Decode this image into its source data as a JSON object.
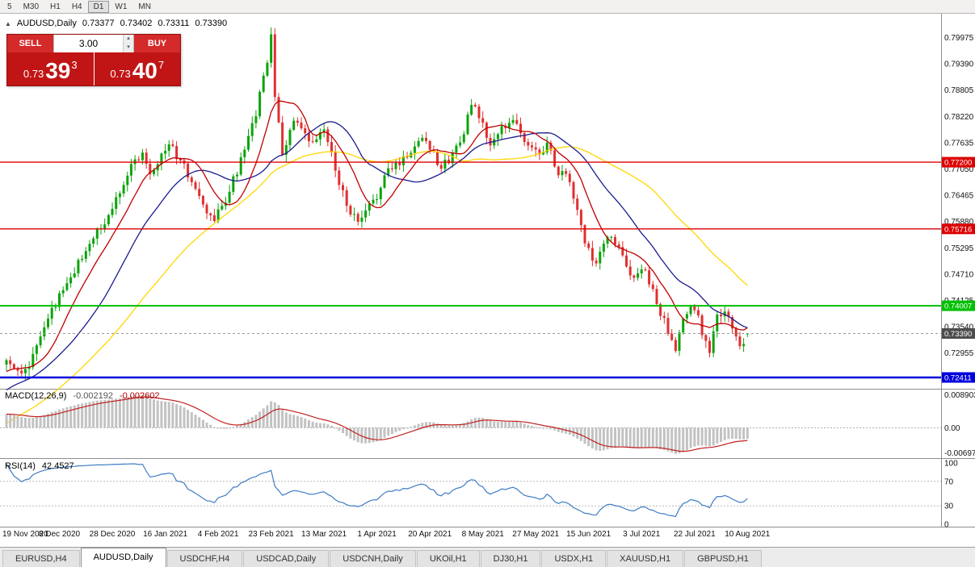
{
  "toolbar": {
    "timeframes": [
      "5",
      "M30",
      "H1",
      "H4",
      "D1",
      "W1",
      "MN"
    ],
    "active": "D1"
  },
  "chart_header": {
    "collapse_icon": "▲",
    "symbol": "AUDUSD,Daily",
    "open": "0.73377",
    "high": "0.73402",
    "low": "0.73311",
    "close": "0.73390"
  },
  "trade_panel": {
    "sell_label": "SELL",
    "buy_label": "BUY",
    "volume": "3.00",
    "volume_up_icon": "▴",
    "volume_down_icon": "▾",
    "sell_price": {
      "base": "0.73",
      "big": "39",
      "sup": "3"
    },
    "buy_price": {
      "base": "0.73",
      "big": "40",
      "sup": "7"
    }
  },
  "macd_panel": {
    "label": "MACD(12,26,9)",
    "value_main": "-0.002192",
    "value_signal": "-0.002602",
    "axis_top": "0.008903",
    "axis_zero": "0.00",
    "axis_bottom": "-0.006970",
    "histogram_color": "#c2c2c2",
    "signal_color": "#c32020"
  },
  "rsi_panel": {
    "label": "RSI(14)",
    "value": "42.4527",
    "axis": [
      "100",
      "70",
      "30",
      "0"
    ],
    "levels": [
      70,
      30
    ],
    "line_color": "#3f7cc4"
  },
  "price_axis": {
    "labels": [
      "0.79975",
      "0.79390",
      "0.78805",
      "0.78220",
      "0.77635",
      "0.77050",
      "0.76465",
      "0.75880",
      "0.75295",
      "0.74710",
      "0.74125",
      "0.73540",
      "0.72955",
      "0.72370"
    ]
  },
  "levels": [
    {
      "value": 0.772,
      "label": "0.77200",
      "color": "#dd0000",
      "width": 1.4
    },
    {
      "value": 0.75716,
      "label": "0.75716",
      "color": "#dd0000",
      "width": 1.4
    },
    {
      "value": 0.74007,
      "label": "0.74007",
      "color": "#00c000",
      "width": 2
    },
    {
      "value": 0.72411,
      "label": "0.72411",
      "color": "#0000dd",
      "width": 2.6
    }
  ],
  "current_price": {
    "value": 0.7339,
    "label": "0.73390",
    "color": "#4d4d4d"
  },
  "bottom_tabs": {
    "items": [
      {
        "label": "EURUSD,H4",
        "active": false
      },
      {
        "label": "AUDUSD,Daily",
        "active": true
      },
      {
        "label": "USDCHF,H4",
        "active": false
      },
      {
        "label": "USDCAD,Daily",
        "active": false
      },
      {
        "label": "USDCNH,Daily",
        "active": false
      },
      {
        "label": "UKOil,H1",
        "active": false
      },
      {
        "label": "DJ30,H1",
        "active": false
      },
      {
        "label": "USDX,H1",
        "active": false
      },
      {
        "label": "XAUUSD,H1",
        "active": false
      },
      {
        "label": "GBPUSD,H1",
        "active": false
      }
    ]
  },
  "chart_data": {
    "type": "candlestick",
    "symbol": "AUDUSD",
    "timeframe": "Daily",
    "current_ohlc": {
      "open": 0.73377,
      "high": 0.73402,
      "low": 0.73311,
      "close": 0.7339
    },
    "ylim": [
      0.7225,
      0.8045
    ],
    "candle_count": 197,
    "candles_per_label": 14,
    "x_labels": [
      "19 Nov 2020",
      "8 Dec 2020",
      "28 Dec 2020",
      "16 Jan 2021",
      "4 Feb 2021",
      "23 Feb 2021",
      "13 Mar 2021",
      "1 Apr 2021",
      "20 Apr 2021",
      "8 May 2021",
      "27 May 2021",
      "15 Jun 2021",
      "3 Jul 2021",
      "22 Jul 2021",
      "10 Aug 2021"
    ],
    "up_color": "#0ca30c",
    "down_color": "#e03030",
    "price_waypoints": [
      [
        0,
        0.7282
      ],
      [
        3,
        0.7256
      ],
      [
        6,
        0.7268
      ],
      [
        9,
        0.733
      ],
      [
        13,
        0.7408
      ],
      [
        17,
        0.746
      ],
      [
        21,
        0.753
      ],
      [
        25,
        0.7572
      ],
      [
        27,
        0.7598
      ],
      [
        30,
        0.766
      ],
      [
        33,
        0.7712
      ],
      [
        36,
        0.7742
      ],
      [
        38,
        0.77
      ],
      [
        40,
        0.7722
      ],
      [
        43,
        0.7762
      ],
      [
        46,
        0.772
      ],
      [
        49,
        0.768
      ],
      [
        52,
        0.7618
      ],
      [
        55,
        0.7592
      ],
      [
        58,
        0.7636
      ],
      [
        61,
        0.77
      ],
      [
        64,
        0.7768
      ],
      [
        66,
        0.783
      ],
      [
        68,
        0.7905
      ],
      [
        70,
        0.7995
      ],
      [
        71,
        0.7862
      ],
      [
        73,
        0.7742
      ],
      [
        76,
        0.7812
      ],
      [
        79,
        0.7776
      ],
      [
        81,
        0.7758
      ],
      [
        84,
        0.7794
      ],
      [
        87,
        0.7706
      ],
      [
        90,
        0.7626
      ],
      [
        93,
        0.7582
      ],
      [
        95,
        0.7606
      ],
      [
        98,
        0.7648
      ],
      [
        101,
        0.77
      ],
      [
        104,
        0.7722
      ],
      [
        107,
        0.7744
      ],
      [
        110,
        0.778
      ],
      [
        113,
        0.7742
      ],
      [
        115,
        0.7706
      ],
      [
        118,
        0.7736
      ],
      [
        121,
        0.7792
      ],
      [
        123,
        0.7846
      ],
      [
        125,
        0.7822
      ],
      [
        128,
        0.7756
      ],
      [
        131,
        0.7792
      ],
      [
        134,
        0.7822
      ],
      [
        137,
        0.7764
      ],
      [
        140,
        0.7742
      ],
      [
        143,
        0.7756
      ],
      [
        146,
        0.77
      ],
      [
        149,
        0.7678
      ],
      [
        151,
        0.7608
      ],
      [
        153,
        0.754
      ],
      [
        156,
        0.7486
      ],
      [
        159,
        0.756
      ],
      [
        162,
        0.7528
      ],
      [
        165,
        0.7462
      ],
      [
        168,
        0.7488
      ],
      [
        171,
        0.7432
      ],
      [
        174,
        0.7364
      ],
      [
        177,
        0.7292
      ],
      [
        179,
        0.7374
      ],
      [
        182,
        0.74
      ],
      [
        184,
        0.7344
      ],
      [
        186,
        0.73
      ],
      [
        188,
        0.7372
      ],
      [
        190,
        0.7392
      ],
      [
        192,
        0.7344
      ],
      [
        194,
        0.731
      ],
      [
        196,
        0.7339
      ]
    ],
    "moving_averages": [
      {
        "period": 50,
        "color": "#ffd700"
      },
      {
        "period": 24,
        "color": "#1b1b8e"
      },
      {
        "period": 10,
        "color": "#c00000"
      }
    ],
    "horizontal_levels": [
      0.772,
      0.75716,
      0.74007,
      0.72411
    ],
    "indicators": [
      {
        "name": "MACD",
        "params": [
          12,
          26,
          9
        ],
        "main": -0.002192,
        "signal": -0.002602,
        "axis_range": [
          -0.00697,
          0.008903
        ]
      },
      {
        "name": "RSI",
        "params": [
          14
        ],
        "value": 42.4527,
        "range": [
          0,
          100
        ],
        "levels": [
          30,
          70
        ]
      }
    ]
  }
}
